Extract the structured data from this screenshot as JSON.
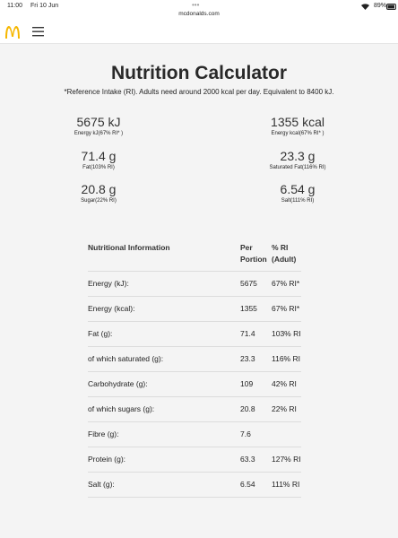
{
  "status_bar": {
    "time": "11:00",
    "date": "Fri 10 Jun",
    "url": "mcdonalds.com",
    "battery": "89%"
  },
  "header": {
    "title": "Nutrition Calculator",
    "note": "*Reference Intake (RI). Adults need around 2000 kcal per day. Equivalent to 8400 kJ."
  },
  "summary": [
    {
      "value": "5675 kJ",
      "label": "Energy kJ(67% RI* )"
    },
    {
      "value": "1355 kcal",
      "label": "Energy kcal(67% RI* )"
    },
    {
      "value": "71.4 g",
      "label": "Fat(103% RI)"
    },
    {
      "value": "23.3 g",
      "label": "Saturated Fat(116% RI)"
    },
    {
      "value": "20.8 g",
      "label": "Sugar(22% RI)"
    },
    {
      "value": "6.54 g",
      "label": "Salt(111% RI)"
    }
  ],
  "table": {
    "columns": [
      "Nutritional Information",
      "Per Portion",
      "% RI (Adult)"
    ],
    "rows": [
      [
        "Energy (kJ):",
        "5675",
        "67% RI*"
      ],
      [
        "Energy (kcal):",
        "1355",
        "67% RI*"
      ],
      [
        "Fat (g):",
        "71.4",
        "103% RI"
      ],
      [
        "of which saturated (g):",
        "23.3",
        "116% RI"
      ],
      [
        "Carbohydrate (g):",
        "109",
        "42% RI"
      ],
      [
        "of which sugars (g):",
        "20.8",
        "22% RI"
      ],
      [
        "Fibre (g):",
        "7.6"
      ],
      [
        "Protein (g):",
        "63.3",
        "127% RI"
      ],
      [
        "Salt (g):",
        "6.54",
        "111% RI"
      ]
    ]
  }
}
